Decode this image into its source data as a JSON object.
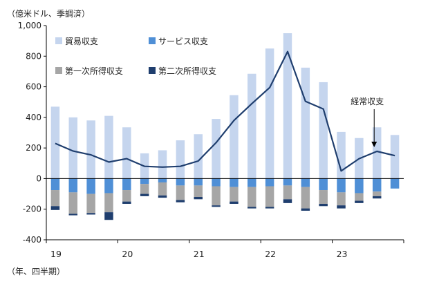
{
  "chart_data": {
    "type": "bar",
    "ylabel": "（億米ドル、季調済）",
    "xlabel": "（年、四半期）",
    "ylim": [
      -400,
      1000
    ],
    "yticks": [
      1000,
      800,
      600,
      400,
      200,
      0,
      -200,
      -400
    ],
    "ytick_labels": [
      "1,000",
      "800",
      "600",
      "400",
      "200",
      "0",
      "-200",
      "-400"
    ],
    "grid": false,
    "legend_position": "top-left",
    "colors": {
      "trade": "#c5d5ee",
      "services": "#4f8fd6",
      "primary_income": "#a6a6a6",
      "secondary_income": "#1f3e6e",
      "current_account": "#1f3e6e"
    },
    "year_labels": [
      {
        "label": "19",
        "start_index": 0
      },
      {
        "label": "20",
        "start_index": 4
      },
      {
        "label": "21",
        "start_index": 8
      },
      {
        "label": "22",
        "start_index": 12
      },
      {
        "label": "23",
        "start_index": 16
      }
    ],
    "categories": [
      "19Q1",
      "19Q2",
      "19Q3",
      "19Q4",
      "20Q1",
      "20Q2",
      "20Q3",
      "20Q4",
      "21Q1",
      "21Q2",
      "21Q3",
      "21Q4",
      "22Q1",
      "22Q2",
      "22Q3",
      "22Q4",
      "23Q1",
      "23Q2",
      "23Q3",
      "23Q4"
    ],
    "series": [
      {
        "key": "trade",
        "name": "貿易収支",
        "values": [
          470,
          400,
          380,
          410,
          335,
          165,
          185,
          250,
          290,
          390,
          545,
          685,
          850,
          950,
          725,
          630,
          305,
          265,
          335,
          285
        ]
      },
      {
        "key": "services",
        "name": "サービス収支",
        "values": [
          -75,
          -90,
          -100,
          -95,
          -75,
          -35,
          -25,
          -45,
          -45,
          -50,
          -55,
          -55,
          -50,
          -45,
          -55,
          -75,
          -90,
          -95,
          -85,
          -65
        ]
      },
      {
        "key": "primary_income",
        "name": "第一次所得収支",
        "values": [
          -105,
          -140,
          -125,
          -125,
          -75,
          -65,
          -85,
          -95,
          -75,
          -125,
          -95,
          -130,
          -135,
          -90,
          -140,
          -90,
          -85,
          -50,
          -30,
          0
        ]
      },
      {
        "key": "secondary_income",
        "name": "第二次所得収支",
        "values": [
          -25,
          -10,
          -10,
          -50,
          -15,
          -15,
          -15,
          -15,
          -15,
          -10,
          -15,
          -10,
          -10,
          -25,
          -15,
          -15,
          -20,
          -15,
          -15,
          0
        ]
      },
      {
        "key": "current_account",
        "name": "経常収支",
        "type": "line",
        "values": [
          230,
          180,
          155,
          108,
          130,
          80,
          75,
          80,
          115,
          235,
          380,
          490,
          595,
          830,
          505,
          455,
          50,
          130,
          178,
          150
        ]
      }
    ],
    "annotations": [
      {
        "text": "経常収支",
        "target_series": "current_account",
        "target_index": 18
      }
    ]
  }
}
